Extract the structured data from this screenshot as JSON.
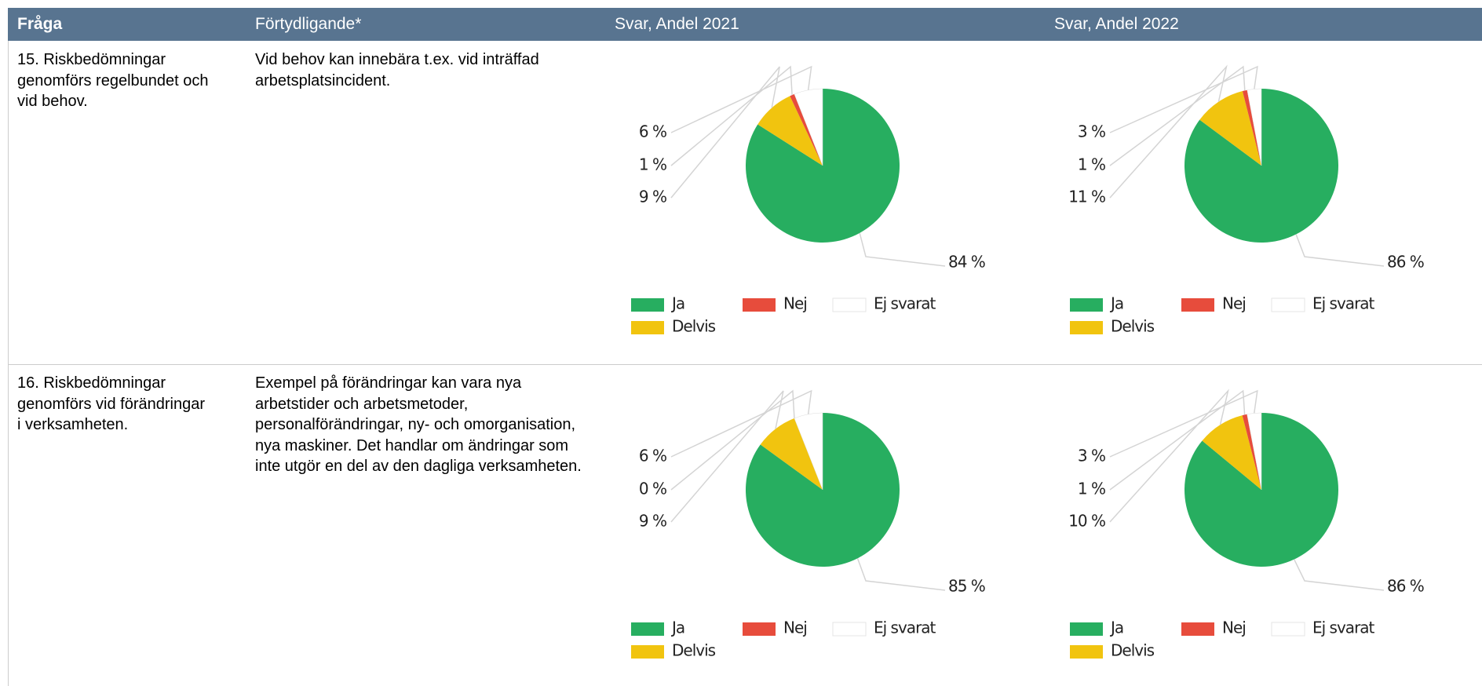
{
  "header": [
    "Fråga",
    "Förtydligande*",
    "Svar, Andel 2021",
    "Svar, Andel 2022"
  ],
  "rows": [
    {
      "question": "15. Riskbedömningar genomförs regelbundet och vid behov.",
      "clarification": "Vid behov kan innebära t.ex. vid inträffad arbetsplatsincident.",
      "charts": [
        {
          "type": "pie",
          "categories": [
            "Ja",
            "Nej",
            "Ej svarat",
            "Delvis"
          ],
          "colors": [
            "#27ae60",
            "#e74c3c",
            "#ffffff",
            "#f1c40f"
          ],
          "values": [
            84,
            1,
            6,
            9
          ],
          "value_labels": [
            "84 %",
            "1 %",
            "6 %",
            "9 %"
          ]
        },
        {
          "type": "pie",
          "categories": [
            "Ja",
            "Nej",
            "Ej svarat",
            "Delvis"
          ],
          "colors": [
            "#27ae60",
            "#e74c3c",
            "#ffffff",
            "#f1c40f"
          ],
          "values": [
            86,
            1,
            3,
            11
          ],
          "value_labels": [
            "86 %",
            "1 %",
            "3 %",
            "11 %"
          ]
        }
      ]
    },
    {
      "question": "16. Riskbedömningar genomförs vid förändringar i verksamheten.",
      "clarification": "Exempel på förändringar kan vara nya arbetstider och arbetsmetoder, personalförändringar, ny- och omorganisation, nya maskiner. Det handlar om ändringar som inte utgör en del av den dagliga verksamheten.",
      "charts": [
        {
          "type": "pie",
          "categories": [
            "Ja",
            "Nej",
            "Ej svarat",
            "Delvis"
          ],
          "colors": [
            "#27ae60",
            "#e74c3c",
            "#ffffff",
            "#f1c40f"
          ],
          "values": [
            85,
            0,
            6,
            9
          ],
          "value_labels": [
            "85 %",
            "0 %",
            "6 %",
            "9 %"
          ]
        },
        {
          "type": "pie",
          "categories": [
            "Ja",
            "Nej",
            "Ej svarat",
            "Delvis"
          ],
          "colors": [
            "#27ae60",
            "#e74c3c",
            "#ffffff",
            "#f1c40f"
          ],
          "values": [
            86,
            1,
            3,
            10
          ],
          "value_labels": [
            "86 %",
            "1 %",
            "3 %",
            "10 %"
          ]
        }
      ]
    }
  ]
}
